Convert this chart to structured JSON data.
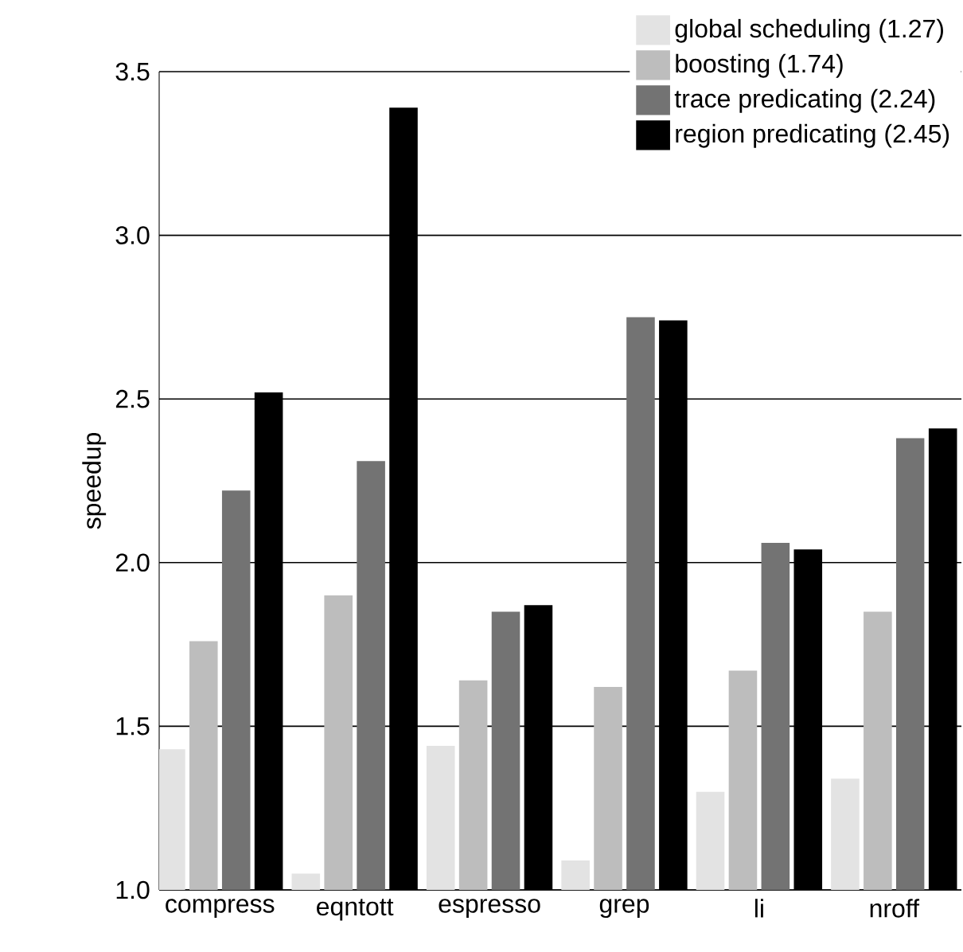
{
  "chart_data": {
    "type": "bar",
    "ylabel": "speedup",
    "categories": [
      "compress",
      "eqntott",
      "espresso",
      "grep",
      "li",
      "nroff"
    ],
    "series": [
      {
        "name": "global scheduling (1.27)",
        "color": "#e3e3e3",
        "values": [
          1.43,
          1.05,
          1.44,
          1.09,
          1.3,
          1.34
        ]
      },
      {
        "name": "boosting (1.74)",
        "color": "#bdbdbd",
        "values": [
          1.76,
          1.9,
          1.64,
          1.62,
          1.67,
          1.85
        ]
      },
      {
        "name": "trace predicating (2.24)",
        "color": "#737373",
        "values": [
          2.22,
          2.31,
          1.85,
          2.75,
          2.06,
          2.38
        ]
      },
      {
        "name": "region predicating (2.45)",
        "color": "#000000",
        "values": [
          2.52,
          3.39,
          1.87,
          2.74,
          2.04,
          2.41
        ]
      }
    ],
    "ylim": [
      1.0,
      3.5
    ],
    "yticks": [
      {
        "value": 1.0,
        "label": "1.0"
      },
      1.5,
      {
        "value": 2.0,
        "label": "2.0"
      },
      2.5,
      {
        "value": 3.0,
        "label": "3.0"
      },
      3.5
    ],
    "grid": "y",
    "legend": "top right"
  }
}
